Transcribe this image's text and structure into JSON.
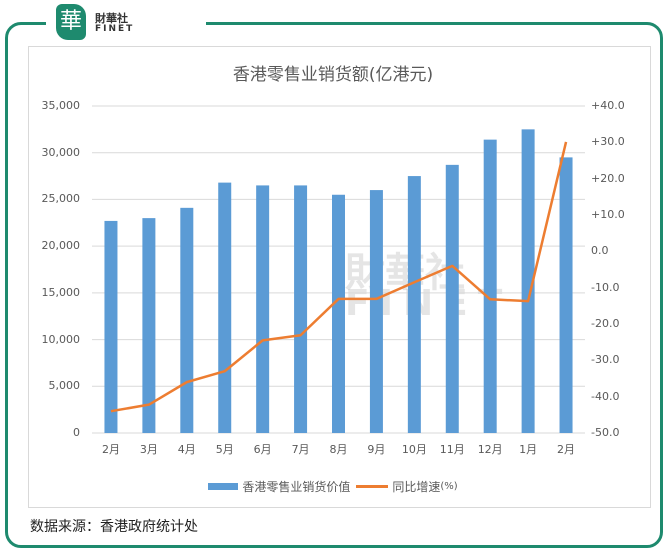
{
  "logo": {
    "cn": "財華社",
    "en": "FINET"
  },
  "chart_data": {
    "type": "bar+line",
    "title": "香港零售业销货额(亿港元)",
    "categories": [
      "2月",
      "3月",
      "4月",
      "5月",
      "6月",
      "7月",
      "8月",
      "9月",
      "10月",
      "11月",
      "12月",
      "1月",
      "2月"
    ],
    "series": [
      {
        "name": "香港零售业销货价值",
        "type": "bar",
        "axis": "left",
        "color": "#5b9bd5",
        "values": [
          22700,
          23000,
          24100,
          26800,
          26500,
          26500,
          25500,
          26000,
          27500,
          28700,
          31400,
          32500,
          29500
        ]
      },
      {
        "name": "同比增速",
        "unit": "(%)",
        "type": "line",
        "axis": "right",
        "color": "#ed7d31",
        "values": [
          -44.0,
          -42.2,
          -36.0,
          -33.0,
          -24.5,
          -23.1,
          -13.1,
          -13.1,
          -8.5,
          -4.0,
          -13.2,
          -13.7,
          30.1
        ]
      }
    ],
    "left_axis": {
      "ylim": [
        0,
        35000
      ],
      "ticks": [
        "0",
        "5,000",
        "10,000",
        "15,000",
        "20,000",
        "25,000",
        "30,000",
        "35,000"
      ]
    },
    "right_axis": {
      "ylim": [
        -50,
        40
      ],
      "ticks": [
        "-50.0",
        "-40.0",
        "-30.0",
        "-20.0",
        "-10.0",
        "0.0",
        "+10.0",
        "+20.0",
        "+30.0",
        "+40.0"
      ]
    },
    "grid": true,
    "legend": "bottom"
  },
  "source": "数据来源：香港政府统计处"
}
